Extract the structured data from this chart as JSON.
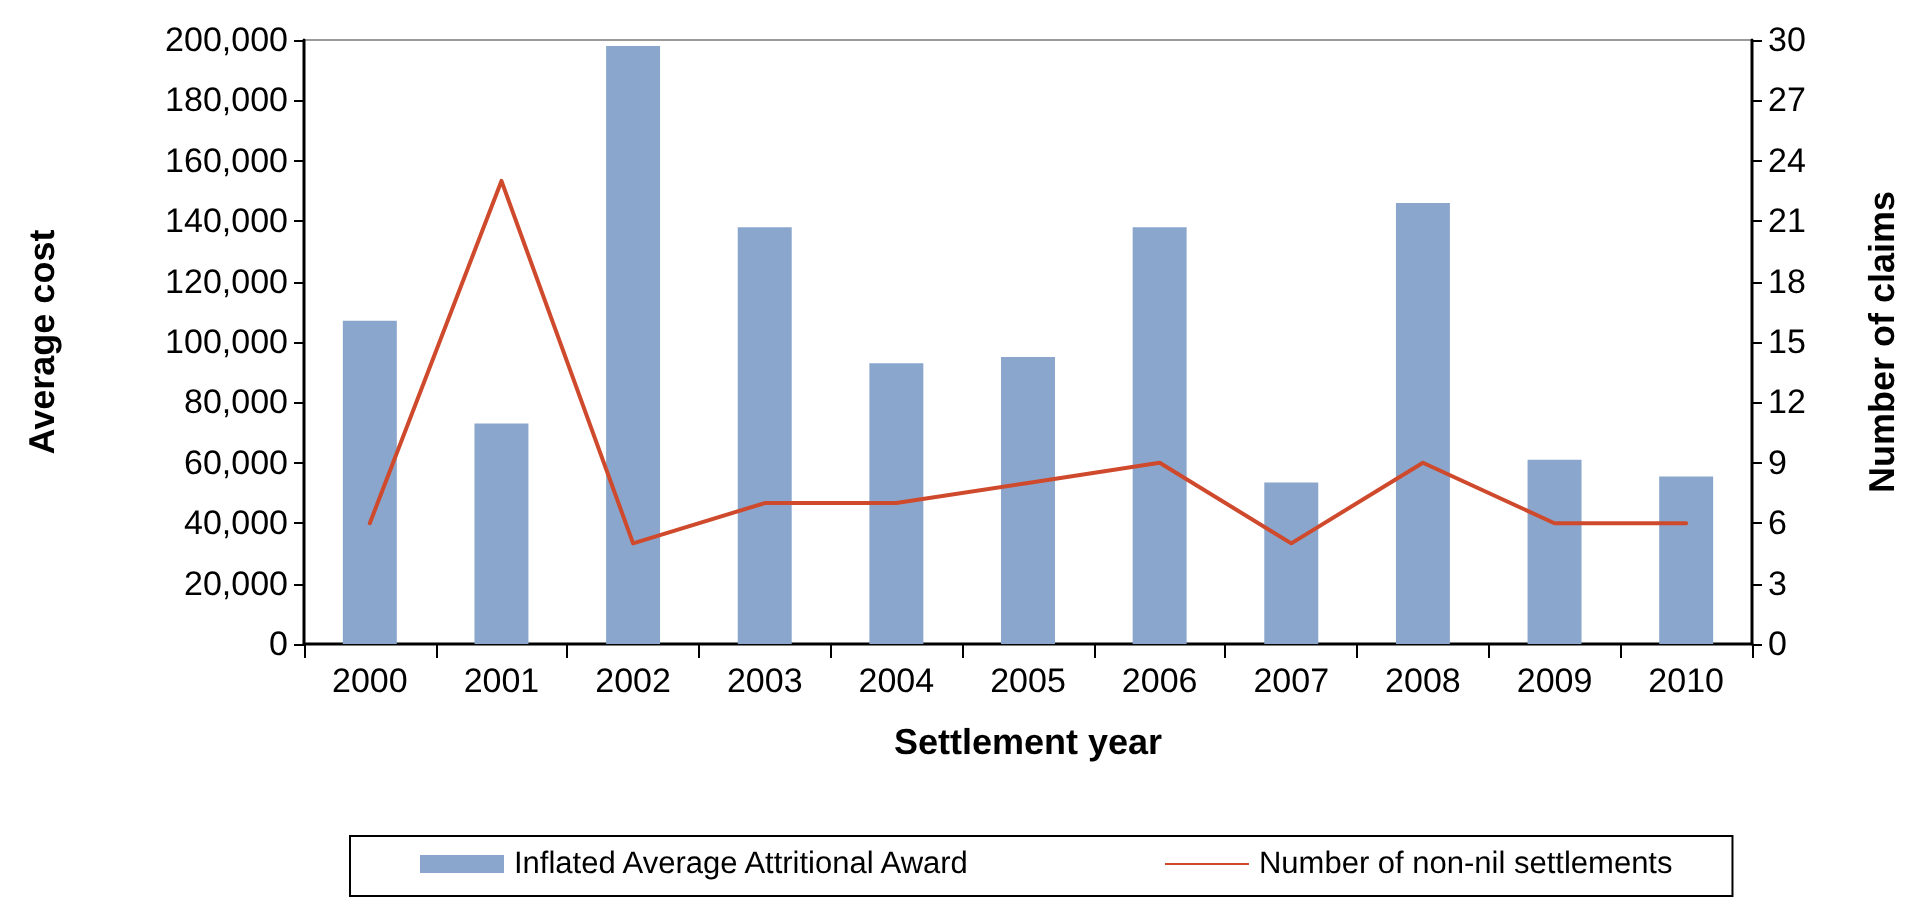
{
  "chart_data": {
    "type": "bar",
    "categories": [
      "2000",
      "2001",
      "2002",
      "2003",
      "2004",
      "2005",
      "2006",
      "2007",
      "2008",
      "2009",
      "2010"
    ],
    "xlabel": "Settlement year",
    "ylabel": "Average cost",
    "y2label": "Number of claims",
    "series": [
      {
        "name": "Inflated Average Attritional Award",
        "color": "#8aa6cc",
        "values": [
          107000,
          73000,
          198000,
          138000,
          93000,
          95000,
          138000,
          53500,
          146000,
          61000,
          55500
        ]
      },
      {
        "name": "Number of non-nil settlements",
        "type": "line",
        "axis": "y2",
        "color": "#cf4a2c",
        "values": [
          6,
          23,
          5,
          7,
          7,
          8,
          9,
          5,
          9,
          6,
          6
        ]
      }
    ],
    "ylim": [
      0,
      200000
    ],
    "yticks": [
      0,
      {
        "value": 20000,
        "label": "20,000"
      },
      {
        "value": 40000,
        "label": "40,000"
      },
      {
        "value": 60000,
        "label": "60,000"
      },
      {
        "value": 80000,
        "label": "80,000"
      },
      {
        "value": 100000,
        "label": "100,000"
      },
      {
        "value": 120000,
        "label": "120,000"
      },
      {
        "value": 140000,
        "label": "140,000"
      },
      {
        "value": 160000,
        "label": "160,000"
      },
      {
        "value": 180000,
        "label": "180,000"
      },
      {
        "value": 200000,
        "label": "200,000"
      }
    ],
    "y2lim": [
      0,
      30
    ],
    "y2ticks": [
      0,
      3,
      6,
      9,
      12,
      15,
      18,
      21,
      24,
      27,
      30
    ],
    "legend": "bottom",
    "grid": false,
    "marker": "none",
    "line_style": "solid"
  }
}
